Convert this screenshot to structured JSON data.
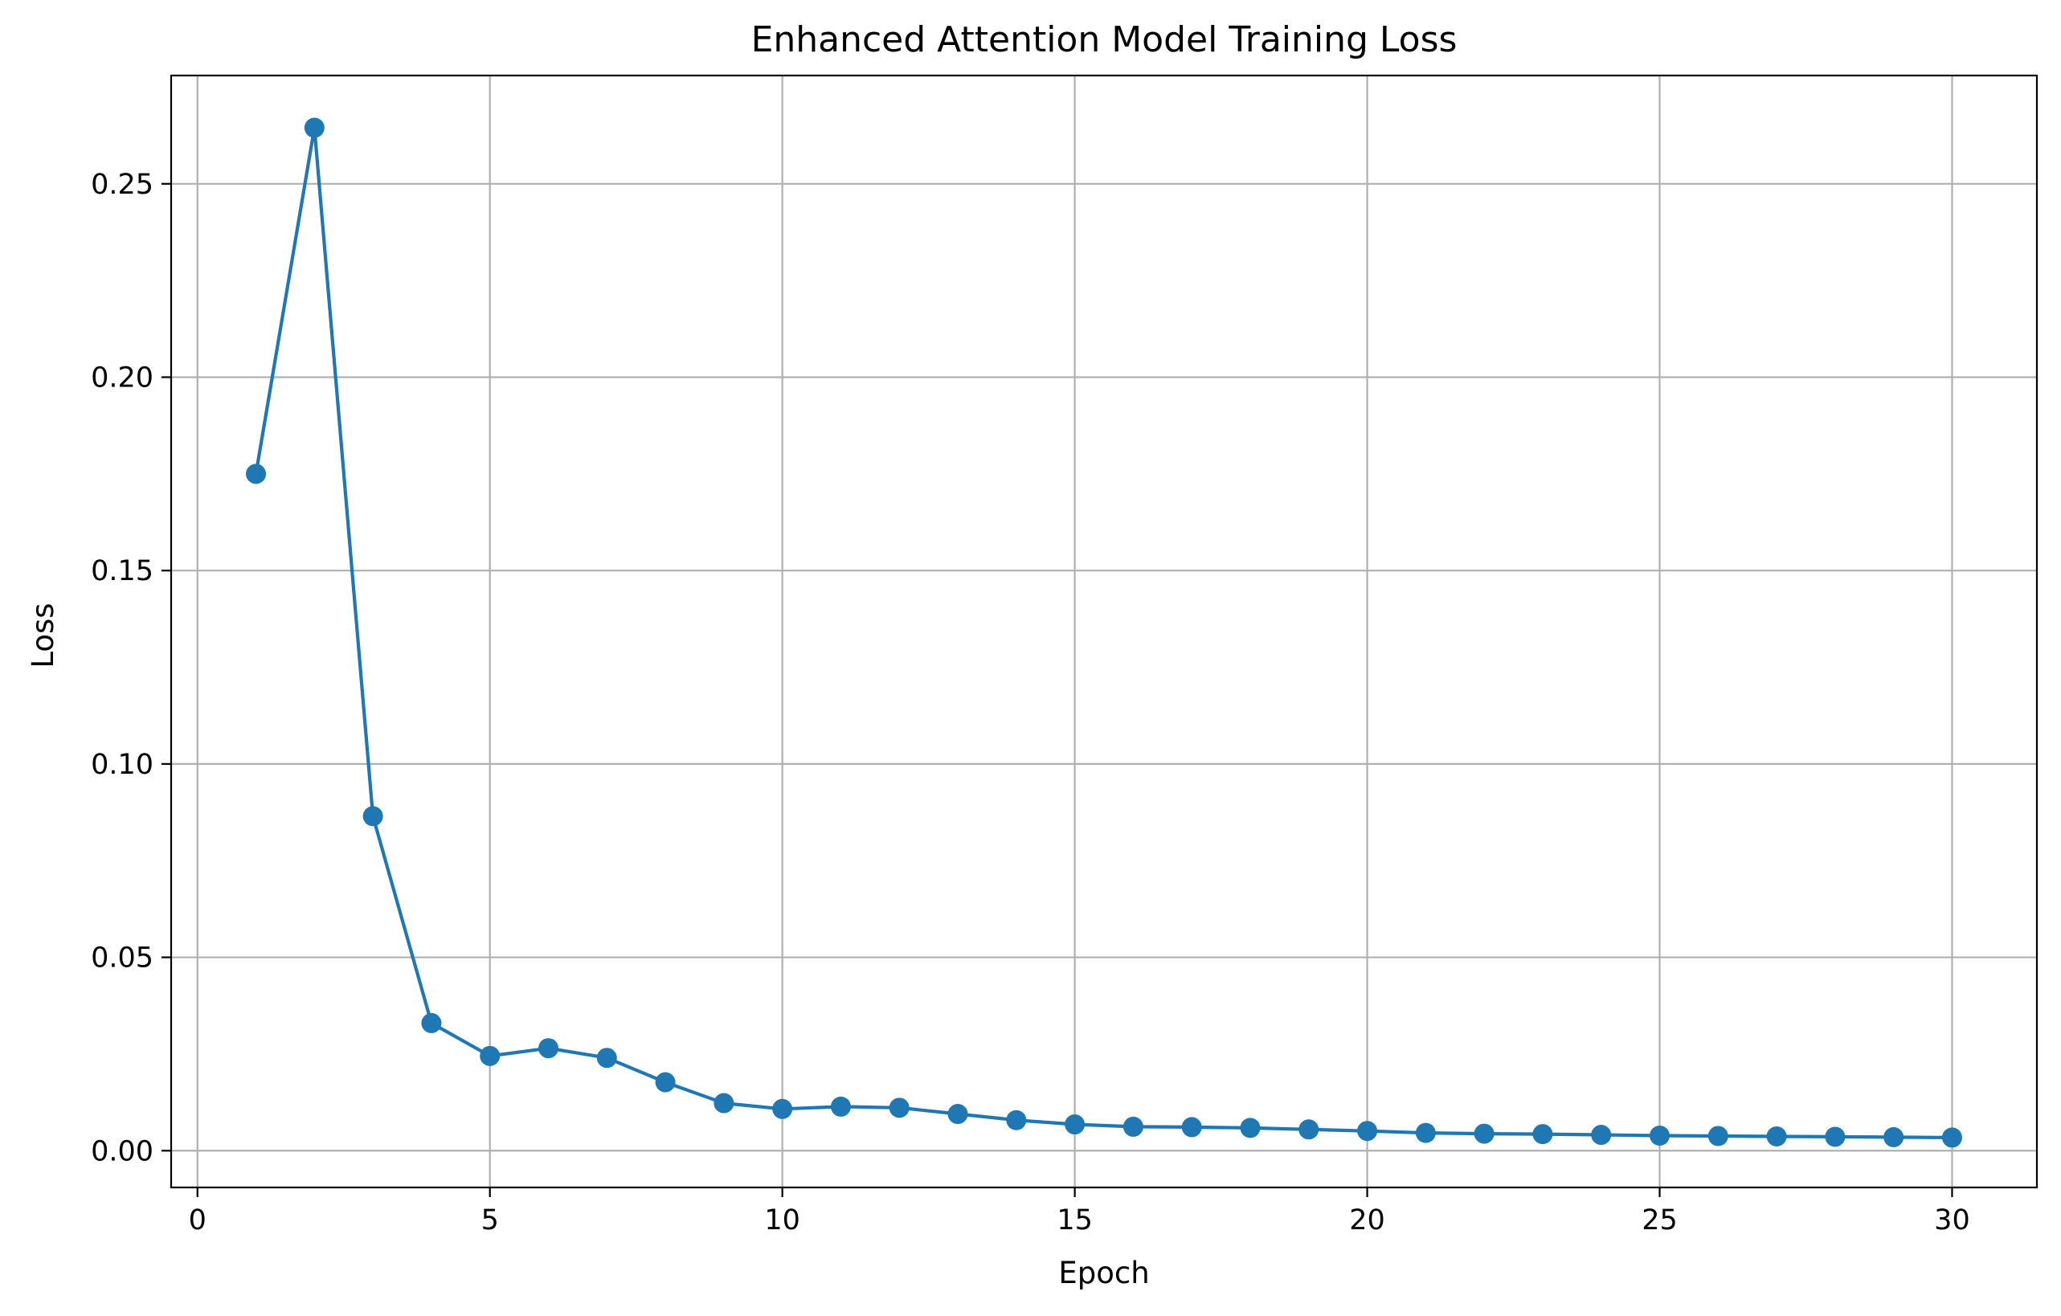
{
  "chart_data": {
    "type": "line",
    "title": "Enhanced Attention Model Training Loss",
    "xlabel": "Epoch",
    "ylabel": "Loss",
    "xlim": [
      -0.45,
      31.45
    ],
    "ylim": [
      -0.0095,
      0.278
    ],
    "xticks": [
      0,
      5,
      10,
      15,
      20,
      25,
      30
    ],
    "xtick_labels": [
      "0",
      "5",
      "10",
      "15",
      "20",
      "25",
      "30"
    ],
    "yticks": [
      0.0,
      0.05,
      0.1,
      0.15,
      0.2,
      0.25
    ],
    "ytick_labels": [
      "0.00",
      "0.05",
      "0.10",
      "0.15",
      "0.20",
      "0.25"
    ],
    "grid": true,
    "legend": "none",
    "marker": "circle",
    "color": "#1f77b4",
    "series": [
      {
        "x": [
          1,
          2,
          3,
          4,
          5,
          6,
          7,
          8,
          9,
          10,
          11,
          12,
          13,
          14,
          15,
          16,
          17,
          18,
          19,
          20,
          21,
          22,
          23,
          24,
          25,
          26,
          27,
          28,
          29,
          30
        ],
        "values": [
          0.175,
          0.2645,
          0.0865,
          0.033,
          0.0245,
          0.0265,
          0.024,
          0.0177,
          0.0123,
          0.0108,
          0.0114,
          0.0111,
          0.0095,
          0.0079,
          0.0068,
          0.0062,
          0.0061,
          0.0059,
          0.0055,
          0.0051,
          0.0046,
          0.0044,
          0.0043,
          0.0041,
          0.0039,
          0.0038,
          0.0037,
          0.0036,
          0.0035,
          0.0034
        ]
      }
    ]
  }
}
